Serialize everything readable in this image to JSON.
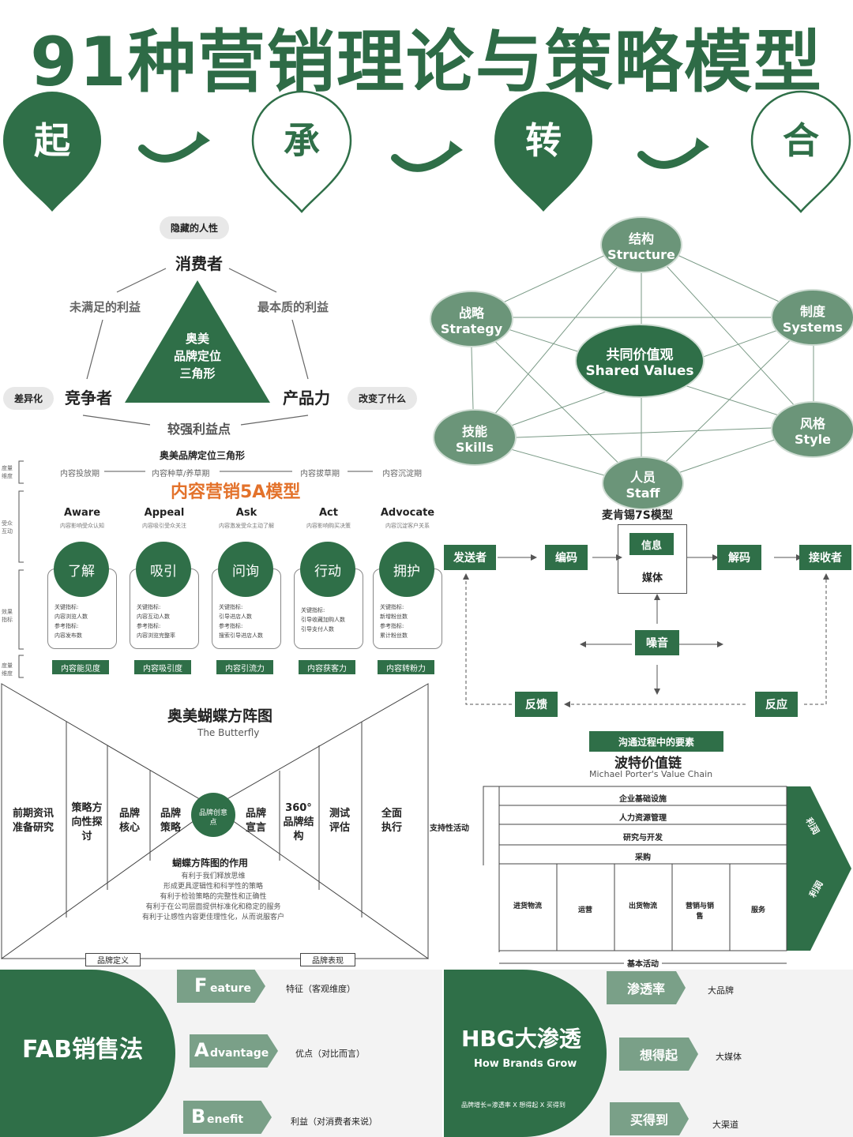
{
  "title": "91种营销理论与策略模型",
  "stages": [
    "起",
    "承",
    "转",
    "合"
  ],
  "triangle": {
    "hidden": "隐藏的人性",
    "consumer": "消费者",
    "left_benefit": "未满足的利益",
    "right_benefit": "最本质的利益",
    "center": [
      "奥美",
      "品牌定位",
      "三角形"
    ],
    "diff_tag": "差异化",
    "competitor": "竞争者",
    "product": "产品力",
    "change_tag": "改变了什么",
    "bottom": "较强利益点",
    "caption": "奥美品牌定位三角形"
  },
  "mck7s": {
    "caption": "麦肯锡7S模型",
    "nodes": [
      {
        "cn": "结构",
        "en": "Structure"
      },
      {
        "cn": "战略",
        "en": "Strategy"
      },
      {
        "cn": "制度",
        "en": "Systems"
      },
      {
        "cn": "共同价值观",
        "en": "Shared Values"
      },
      {
        "cn": "技能",
        "en": "Skills"
      },
      {
        "cn": "风格",
        "en": "Style"
      },
      {
        "cn": "人员",
        "en": "Staff"
      }
    ]
  },
  "five_a": {
    "title": "内容营销5A模型",
    "side_labels": [
      "度量维度",
      "受众互动",
      "效果指标",
      "度量维度"
    ],
    "phases": [
      "内容投放期",
      "内容种草/养草期",
      "内容拔草期",
      "内容沉淀期"
    ],
    "stages": [
      {
        "en": "Aware",
        "desc": "内容影响受众认知",
        "cn": "了解",
        "metrics": [
          "关键指标:",
          "内容浏览人数",
          "参考指标:",
          "内容发布数"
        ],
        "tag": "内容能见度"
      },
      {
        "en": "Appeal",
        "desc": "内容吸引受众关注",
        "cn": "吸引",
        "metrics": [
          "关键指标:",
          "内容互动人数",
          "参考指标:",
          "内容浏览完整率"
        ],
        "tag": "内容吸引度"
      },
      {
        "en": "Ask",
        "desc": "内容激发受众主动了解",
        "cn": "问询",
        "metrics": [
          "关键指标:",
          "引导进店人数",
          "参考指标:",
          "搜索引导进店人数"
        ],
        "tag": "内容引流力"
      },
      {
        "en": "Act",
        "desc": "内容影响购买决策",
        "cn": "行动",
        "metrics": [
          "关键指标:",
          "引导收藏加购人数",
          "引导支付人数"
        ],
        "tag": "内容获客力"
      },
      {
        "en": "Advocate",
        "desc": "内容沉淀客户关系",
        "cn": "拥护",
        "metrics": [
          "关键指标:",
          "新增粉丝数",
          "参考指标:",
          "累计粉丝数"
        ],
        "tag": "内容转粉力"
      }
    ]
  },
  "comm": {
    "sender": "发送者",
    "encode": "编码",
    "info": "信息",
    "media": "媒体",
    "decode": "解码",
    "receiver": "接收者",
    "noise": "噪音",
    "feedback": "反馈",
    "response": "反应",
    "caption": "沟通过程中的要素"
  },
  "butterfly": {
    "title": "奥美蝴蝶方阵图",
    "subtitle": "The Butterfly",
    "cols": [
      "前期资讯准备研究",
      "策略方向性探讨",
      "品牌核心",
      "品牌策略",
      "品牌宣言",
      "360°品牌结构",
      "测试评估",
      "全面执行"
    ],
    "center": "品牌创意点",
    "purpose_title": "蝴蝶方阵图的作用",
    "purposes": [
      "有利于我们释放思维",
      "形成更具逻辑性和科学性的策略",
      "有利于检验策略的完整性和正确性",
      "有利于在公司层面提供标准化和稳定的服务",
      "有利于让感性内容更佳理性化，从而说服客户"
    ],
    "left_tag": "品牌定义",
    "right_tag": "品牌表现"
  },
  "porter": {
    "title": "波特价值链",
    "subtitle": "Michael Porter's Value Chain",
    "support_label": "支持性活动",
    "support": [
      "企业基础设施",
      "人力资源管理",
      "研究与开发",
      "采购"
    ],
    "primary": [
      "进货物流",
      "运营",
      "出货物流",
      "营销与销售",
      "服务"
    ],
    "base_label": "基本活动",
    "margin": "利润"
  },
  "fab": {
    "title": "FAB销售法",
    "rows": [
      {
        "letter": "F",
        "rest": "eature",
        "desc": "特征（客观维度）"
      },
      {
        "letter": "A",
        "rest": "dvantage",
        "desc": "优点（对比而言）"
      },
      {
        "letter": "B",
        "rest": "enefit",
        "desc": "利益（对消费者来说）"
      }
    ]
  },
  "hbg": {
    "title": "HBG大渗透",
    "subtitle": "How Brands Grow",
    "formula": "品牌增长=渗透率 X 想得起 X 买得到",
    "rows": [
      {
        "label": "渗透率",
        "desc": "大品牌"
      },
      {
        "label": "想得起",
        "desc": "大媒体"
      },
      {
        "label": "买得到",
        "desc": "大渠道"
      }
    ]
  }
}
